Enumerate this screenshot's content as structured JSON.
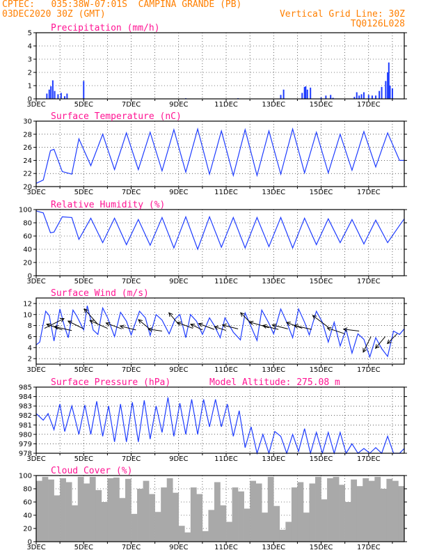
{
  "header": {
    "left_line1": "CPTEC:   035:38W-07:01S  CAMPINA GRANDE (PB)",
    "left_line2": "03DEC2020 30Z (GMT)",
    "right_line2": "Vertical Grid Line: 30Z",
    "right_line3": "TQ0126L028"
  },
  "colors": {
    "header": "#ff7f00",
    "title": "#ff1493",
    "line": "#1e3cff",
    "cloud": "#a9a9a9",
    "wind": "#000000",
    "grid": "#000000"
  },
  "chart_data": [
    {
      "id": "precipitation",
      "type": "bar",
      "title": "Precipitation (mm/h)",
      "ylim": [
        0,
        5
      ],
      "yticks": [
        0,
        1,
        2,
        3,
        4,
        5
      ],
      "xlim": [
        3,
        18.5
      ],
      "xticks": [
        "3DEC",
        "5DEC",
        "7DEC",
        "9DEC",
        "11DEC",
        "13DEC",
        "15DEC",
        "17DEC"
      ],
      "x": [
        3.45,
        3.55,
        3.62,
        3.7,
        3.78,
        3.92,
        4.05,
        4.2,
        4.3,
        5.0,
        9.3,
        11.5,
        13.3,
        13.42,
        14.2,
        14.3,
        14.35,
        14.42,
        14.55,
        15.0,
        15.2,
        15.4,
        15.5,
        16.4,
        16.5,
        16.6,
        16.7,
        16.8,
        17.0,
        17.15,
        17.3,
        17.45,
        17.55,
        17.72,
        17.8,
        17.85,
        17.9,
        18.0
      ],
      "values": [
        0.4,
        0.7,
        0.95,
        1.4,
        0.6,
        0.35,
        0.45,
        0.2,
        0.4,
        1.35,
        0.05,
        0.05,
        0.3,
        0.7,
        0.45,
        0.9,
        0.95,
        0.7,
        0.85,
        0.1,
        0.25,
        0.3,
        0.08,
        0.15,
        0.5,
        0.25,
        0.35,
        0.5,
        0.3,
        0.25,
        0.25,
        0.6,
        0.9,
        1.35,
        2.0,
        2.75,
        1.0,
        0.8
      ]
    },
    {
      "id": "temperature",
      "type": "line",
      "title": "Surface Temperature (nC)",
      "ylim": [
        20,
        30
      ],
      "yticks": [
        20,
        22,
        24,
        26,
        28,
        30
      ],
      "xlim": [
        3,
        18.5
      ],
      "xticks": [
        "3DEC",
        "5DEC",
        "7DEC",
        "9DEC",
        "11DEC",
        "13DEC",
        "15DEC",
        "17DEC"
      ],
      "x": [
        3.0,
        3.3,
        3.6,
        3.75,
        4.1,
        4.5,
        4.8,
        5.3,
        5.8,
        6.3,
        6.8,
        7.3,
        7.8,
        8.3,
        8.8,
        9.3,
        9.8,
        10.3,
        10.8,
        11.3,
        11.8,
        12.3,
        12.8,
        13.3,
        13.8,
        14.3,
        14.8,
        15.3,
        15.8,
        16.3,
        16.8,
        17.3,
        17.8,
        18.3,
        18.5
      ],
      "values": [
        20.5,
        21.0,
        25.5,
        25.7,
        22.3,
        21.9,
        27.3,
        23.2,
        28.0,
        22.6,
        28.2,
        22.6,
        28.3,
        22.4,
        28.7,
        22.2,
        28.8,
        21.9,
        28.5,
        21.7,
        28.7,
        21.7,
        28.5,
        21.9,
        28.8,
        22.1,
        28.3,
        22.1,
        28.0,
        22.5,
        28.4,
        23.0,
        28.2,
        24.0,
        24.0
      ]
    },
    {
      "id": "humidity",
      "type": "line",
      "title": "Relative Humidity (%)",
      "ylim": [
        0,
        100
      ],
      "yticks": [
        0,
        20,
        40,
        60,
        80,
        100
      ],
      "xlim": [
        3,
        18.5
      ],
      "xticks": [
        "3DEC",
        "5DEC",
        "7DEC",
        "9DEC",
        "11DEC",
        "13DEC",
        "15DEC",
        "17DEC"
      ],
      "x": [
        3.0,
        3.3,
        3.6,
        3.75,
        4.1,
        4.5,
        4.8,
        5.3,
        5.8,
        6.3,
        6.8,
        7.3,
        7.8,
        8.3,
        8.8,
        9.3,
        9.8,
        10.3,
        10.8,
        11.3,
        11.8,
        12.3,
        12.8,
        13.3,
        13.8,
        14.3,
        14.8,
        15.3,
        15.8,
        16.3,
        16.8,
        17.3,
        17.8,
        18.3,
        18.5
      ],
      "values": [
        98,
        95,
        65,
        66,
        89,
        88,
        55,
        87,
        50,
        87,
        47,
        85,
        46,
        88,
        42,
        89,
        40,
        89,
        43,
        88,
        42,
        88,
        44,
        88,
        42,
        87,
        47,
        86,
        50,
        85,
        48,
        84,
        50,
        76,
        86
      ]
    },
    {
      "id": "wind",
      "type": "line",
      "title": "Surface Wind (m/s)",
      "ylim": [
        1,
        13
      ],
      "yticks": [
        2,
        4,
        6,
        8,
        10,
        12
      ],
      "xlim": [
        3,
        18.5
      ],
      "xticks": [
        "3DEC",
        "5DEC",
        "7DEC",
        "9DEC",
        "11DEC",
        "13DEC",
        "15DEC",
        "17DEC"
      ],
      "x": [
        3.0,
        3.15,
        3.4,
        3.55,
        3.75,
        4.0,
        4.2,
        4.35,
        4.55,
        4.7,
        5.0,
        5.15,
        5.4,
        5.6,
        5.8,
        6.0,
        6.3,
        6.55,
        6.8,
        7.0,
        7.35,
        7.6,
        7.8,
        8.05,
        8.3,
        8.6,
        8.85,
        9.05,
        9.3,
        9.5,
        9.75,
        10.0,
        10.3,
        10.5,
        10.75,
        10.95,
        11.3,
        11.6,
        11.8,
        12.0,
        12.3,
        12.5,
        12.8,
        13.0,
        13.3,
        13.55,
        13.8,
        14.05,
        14.3,
        14.5,
        14.8,
        15.05,
        15.3,
        15.55,
        15.8,
        16.05,
        16.3,
        16.55,
        16.8,
        17.05,
        17.3,
        17.55,
        17.8,
        18.05,
        18.3,
        18.5
      ],
      "values": [
        4.5,
        5.0,
        10.6,
        9.8,
        5.2,
        11.0,
        7.7,
        5.8,
        10.8,
        9.8,
        7.2,
        11.6,
        7.2,
        6.4,
        11.2,
        9.5,
        6.0,
        10.4,
        8.8,
        6.3,
        10.6,
        9.4,
        6.2,
        10.0,
        9.0,
        6.5,
        9.2,
        10.0,
        5.8,
        10.0,
        8.8,
        6.4,
        9.4,
        8.0,
        5.8,
        9.4,
        6.8,
        5.4,
        10.3,
        8.3,
        5.3,
        10.8,
        8.4,
        6.5,
        11.0,
        8.6,
        5.8,
        11.0,
        8.6,
        6.3,
        10.6,
        8.6,
        5.0,
        8.6,
        4.3,
        7.3,
        3.0,
        6.5,
        5.5,
        2.3,
        5.8,
        3.8,
        2.4,
        7.0,
        6.4,
        7.4
      ],
      "vectors": [
        {
          "x": 3.35,
          "y": 7.5,
          "dx": 1.0,
          "dy": 0.5
        },
        {
          "x": 4.1,
          "y": 7.2,
          "dx": -0.8,
          "dy": 0.3
        },
        {
          "x": 4.5,
          "y": 7.1,
          "dx": -0.9,
          "dy": 0.2
        },
        {
          "x": 5.0,
          "y": 7.4,
          "dx": -0.8,
          "dy": 0.4
        },
        {
          "x": 5.6,
          "y": 8.2,
          "dx": -0.7,
          "dy": 0.8
        },
        {
          "x": 6.0,
          "y": 7.5,
          "dx": -0.9,
          "dy": 0.4
        },
        {
          "x": 6.6,
          "y": 7.4,
          "dx": -0.8,
          "dy": 0.3
        },
        {
          "x": 7.2,
          "y": 7.2,
          "dx": -0.8,
          "dy": 0.2
        },
        {
          "x": 7.8,
          "y": 7.3,
          "dx": -0.6,
          "dy": 0.5
        },
        {
          "x": 8.3,
          "y": 7.0,
          "dx": -0.7,
          "dy": 0.1
        },
        {
          "x": 9.0,
          "y": 8.2,
          "dx": -0.5,
          "dy": 0.6
        },
        {
          "x": 9.6,
          "y": 7.5,
          "dx": -0.8,
          "dy": 0.3
        },
        {
          "x": 10.0,
          "y": 7.2,
          "dx": -0.6,
          "dy": 0.3
        },
        {
          "x": 10.5,
          "y": 7.3,
          "dx": -0.8,
          "dy": 0.3
        },
        {
          "x": 11.0,
          "y": 7.1,
          "dx": -0.6,
          "dy": 0.2
        },
        {
          "x": 11.5,
          "y": 7.4,
          "dx": -0.8,
          "dy": 0.2
        },
        {
          "x": 12.1,
          "y": 8.2,
          "dx": -0.6,
          "dy": 0.6
        },
        {
          "x": 12.8,
          "y": 7.6,
          "dx": -1.0,
          "dy": 0.3
        },
        {
          "x": 13.2,
          "y": 7.3,
          "dx": -0.8,
          "dy": 0.2
        },
        {
          "x": 13.6,
          "y": 7.4,
          "dx": -0.8,
          "dy": 0.2
        },
        {
          "x": 14.2,
          "y": 7.5,
          "dx": -0.8,
          "dy": 0.3
        },
        {
          "x": 14.6,
          "y": 7.3,
          "dx": -0.9,
          "dy": 0.2
        },
        {
          "x": 15.3,
          "y": 7.7,
          "dx": -0.8,
          "dy": 0.6
        },
        {
          "x": 16.0,
          "y": 6.5,
          "dx": -0.9,
          "dy": 0.3
        },
        {
          "x": 16.6,
          "y": 7.0,
          "dx": -0.8,
          "dy": 0.1
        },
        {
          "x": 17.1,
          "y": 6.0,
          "dx": -0.4,
          "dy": -0.8
        },
        {
          "x": 17.7,
          "y": 6.0,
          "dx": -0.5,
          "dy": -0.6
        },
        {
          "x": 18.2,
          "y": 6.5,
          "dx": -0.5,
          "dy": -0.5
        }
      ]
    },
    {
      "id": "pressure",
      "type": "line",
      "title": "Surface Pressure (hPa)",
      "annotation": "Model Altitude: 275.08 m",
      "ylim": [
        978,
        985
      ],
      "yticks": [
        978,
        979,
        980,
        981,
        982,
        983,
        984,
        985
      ],
      "xlim": [
        3,
        18.5
      ],
      "xticks": [
        "3DEC",
        "5DEC",
        "7DEC",
        "9DEC",
        "11DEC",
        "13DEC",
        "15DEC",
        "17DEC"
      ],
      "x": [
        3.0,
        3.3,
        3.5,
        3.75,
        4.0,
        4.2,
        4.5,
        4.8,
        5.05,
        5.3,
        5.55,
        5.8,
        6.05,
        6.3,
        6.55,
        6.8,
        7.05,
        7.3,
        7.55,
        7.8,
        8.05,
        8.3,
        8.55,
        8.8,
        9.05,
        9.3,
        9.55,
        9.8,
        10.05,
        10.3,
        10.55,
        10.8,
        11.05,
        11.3,
        11.55,
        11.8,
        12.05,
        12.3,
        12.55,
        12.8,
        13.05,
        13.3,
        13.55,
        13.8,
        14.05,
        14.3,
        14.55,
        14.8,
        15.05,
        15.3,
        15.55,
        15.8,
        16.05,
        16.3,
        16.55,
        16.8,
        17.05,
        17.3,
        17.55,
        17.8,
        18.05,
        18.3,
        18.5
      ],
      "values": [
        982.2,
        981.5,
        982.2,
        980.5,
        983.2,
        980.3,
        983.0,
        980.0,
        983.1,
        980.0,
        983.5,
        979.8,
        983.0,
        979.2,
        983.2,
        979.2,
        983.4,
        979.2,
        983.6,
        979.5,
        983.0,
        980.2,
        983.9,
        979.8,
        983.3,
        980.0,
        983.7,
        980.0,
        983.7,
        980.8,
        983.7,
        980.8,
        983.2,
        979.8,
        982.5,
        978.6,
        980.8,
        978.0,
        980.0,
        978.0,
        980.3,
        979.8,
        977.8,
        980.0,
        978.2,
        980.6,
        978.0,
        980.2,
        977.6,
        980.2,
        978.0,
        980.2,
        977.8,
        979.0,
        977.2,
        978.5,
        977.0,
        978.6,
        977.0,
        979.8,
        977.0,
        978.0,
        978.5
      ]
    },
    {
      "id": "cloud",
      "type": "bar",
      "title": "Cloud Cover (%)",
      "ylim": [
        0,
        100
      ],
      "yticks": [
        0,
        20,
        40,
        60,
        80,
        100
      ],
      "xlim": [
        3,
        18.5
      ],
      "xticks": [
        "3DEC",
        "5DEC",
        "7DEC",
        "9DEC",
        "11DEC",
        "13DEC",
        "15DEC",
        "17DEC"
      ],
      "x": [
        3.0,
        3.25,
        3.5,
        3.75,
        4.0,
        4.25,
        4.5,
        4.75,
        5.0,
        5.25,
        5.5,
        5.75,
        6.0,
        6.25,
        6.5,
        6.75,
        7.0,
        7.25,
        7.5,
        7.75,
        8.0,
        8.25,
        8.5,
        8.75,
        9.0,
        9.25,
        9.5,
        9.75,
        10.0,
        10.25,
        10.5,
        10.75,
        11.0,
        11.25,
        11.5,
        11.75,
        12.0,
        12.25,
        12.5,
        12.75,
        13.0,
        13.25,
        13.5,
        13.75,
        14.0,
        14.25,
        14.5,
        14.75,
        15.0,
        15.25,
        15.5,
        15.75,
        16.0,
        16.25,
        16.5,
        16.75,
        17.0,
        17.25,
        17.5,
        17.75,
        18.0,
        18.25
      ],
      "values": [
        92,
        98,
        94,
        70,
        96,
        90,
        55,
        98,
        88,
        98,
        78,
        60,
        96,
        97,
        66,
        95,
        42,
        80,
        92,
        72,
        45,
        82,
        96,
        74,
        24,
        14,
        82,
        72,
        16,
        48,
        90,
        55,
        30,
        82,
        76,
        50,
        92,
        88,
        44,
        98,
        54,
        18,
        30,
        82,
        90,
        44,
        88,
        98,
        64,
        96,
        98,
        86,
        60,
        94,
        84,
        96,
        92,
        98,
        80,
        95,
        92,
        84
      ]
    }
  ]
}
